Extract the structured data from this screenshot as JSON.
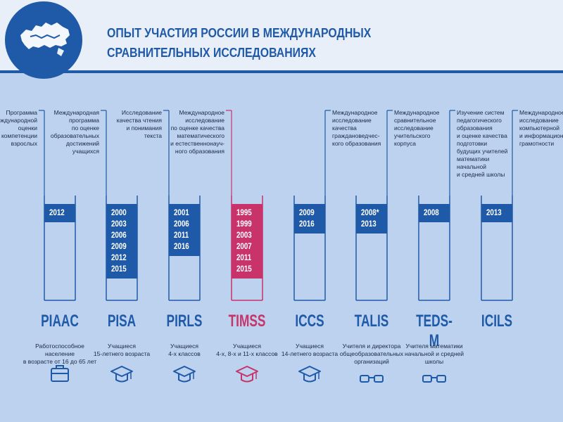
{
  "header": {
    "title_line1": "ОПЫТ УЧАСТИЯ РОССИИ В МЕЖДУНАРОДНЫХ",
    "title_line2": "СРАВНИТЕЛЬНЫХ ИССЛЕДОВАНИЯХ",
    "logo": "russia-map-logo"
  },
  "colors": {
    "primary": "#1f5aa8",
    "accent": "#c8336a",
    "background": "#bdd2ee",
    "header_background": "#e9eff8"
  },
  "studies": [
    {
      "abbr": "PIAAC",
      "description": [
        "Программа",
        "международной",
        "оценки",
        "компетенции",
        "взрослых"
      ],
      "years": [
        "2012"
      ],
      "participants": [
        "Работоспособное население",
        "в возрасте от 16 до 65 лет"
      ],
      "icon": "briefcase-icon"
    },
    {
      "abbr": "PISA",
      "description": [
        "Международная",
        "программа",
        "по оценке",
        "образовательных",
        "достижений",
        "учащихся"
      ],
      "years": [
        "2000",
        "2003",
        "2006",
        "2009",
        "2012",
        "2015"
      ],
      "participants": [
        "Учащиеся",
        "15-летнего возраста"
      ],
      "icon": "graduation-cap-icon"
    },
    {
      "abbr": "PIRLS",
      "description": [
        "Исследование",
        "качества чтения",
        "и понимания",
        "текста"
      ],
      "years": [
        "2001",
        "2006",
        "2011",
        "2016"
      ],
      "participants": [
        "Учащиеся",
        "4-х классов"
      ],
      "icon": "graduation-cap-icon"
    },
    {
      "abbr": "TIMSS",
      "description": [
        "Международное",
        "исследование",
        "по оценке качества",
        "математического",
        "и естественнонауч-",
        "ного образования"
      ],
      "years": [
        "1995",
        "1999",
        "2003",
        "2007",
        "2011",
        "2015"
      ],
      "participants": [
        "Учащиеся",
        "4-х, 8-х и 11-х классов"
      ],
      "icon": "graduation-cap-icon",
      "highlight": true
    },
    {
      "abbr": "ICCS",
      "description": [
        "Международное",
        "исследование",
        "качества",
        "граждановедчес-",
        "кого образования"
      ],
      "years": [
        "2009",
        "2016"
      ],
      "participants": [
        "Учащиеся",
        "14-летнего возраста"
      ],
      "icon": "graduation-cap-icon"
    },
    {
      "abbr": "TALIS",
      "description": [
        "Международное",
        "сравнительное",
        "исследование",
        "учительского",
        "корпуса"
      ],
      "years": [
        "2008*",
        "2013"
      ],
      "participants": [
        "Учителя и директора",
        "общеобразовательных",
        "организаций"
      ],
      "icon": "glasses-icon"
    },
    {
      "abbr": "TEDS-M",
      "description": [
        "Изучение систем",
        "педагогического",
        "образования",
        "и оценке качества",
        "подготовки",
        "будущих учителей",
        "математики",
        "начальной",
        "и средней школы"
      ],
      "years": [
        "2008"
      ],
      "participants": [
        "Учителя математики",
        "начальной и средней",
        "школы"
      ],
      "icon": "glasses-icon"
    },
    {
      "abbr": "ICILS",
      "description": [
        "Международное",
        "исследование",
        "компьютерной",
        "и информационной",
        "грамотности"
      ],
      "years": [
        "2013"
      ],
      "participants": [],
      "icon": "none"
    }
  ]
}
